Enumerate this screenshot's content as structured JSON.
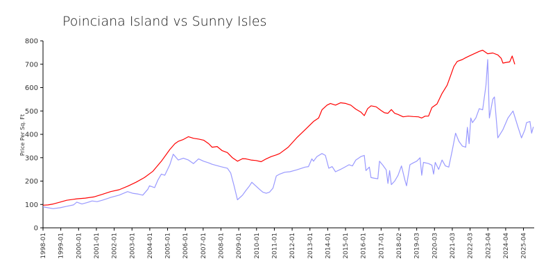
{
  "chart_data": {
    "type": "line",
    "title": "Poinciana Island vs Sunny Isles",
    "xlabel": "",
    "ylabel": "Price Per Sq. Ft",
    "ylim": [
      0,
      800
    ],
    "y_ticks": [
      0,
      100,
      200,
      300,
      400,
      500,
      600,
      700,
      800
    ],
    "x_ticks": [
      "1998-01",
      "1999-01",
      "2000-01",
      "2001-01",
      "2002-01",
      "2003-01",
      "2004-01",
      "2005-01",
      "2006-01",
      "2007-01",
      "2008-01",
      "2009-01",
      "2010-01",
      "2011-01",
      "2012-01",
      "2013-01",
      "2014-01",
      "2015-01",
      "2016-01",
      "2017-01",
      "2018-02",
      "2019-03",
      "2020-03",
      "2021-03",
      "2022-03",
      "2023-04",
      "2024-04",
      "2025-04"
    ],
    "grid": false,
    "legend": "none",
    "series": [
      {
        "color": "#ff0000",
        "points": [
          [
            1998.0,
            97
          ],
          [
            1998.3,
            98
          ],
          [
            1998.6,
            102
          ],
          [
            1999.0,
            110
          ],
          [
            1999.4,
            118
          ],
          [
            1999.8,
            122
          ],
          [
            2000.0,
            124
          ],
          [
            2000.5,
            127
          ],
          [
            2001.0,
            132
          ],
          [
            2001.5,
            143
          ],
          [
            2002.0,
            155
          ],
          [
            2002.5,
            163
          ],
          [
            2003.0,
            178
          ],
          [
            2003.5,
            195
          ],
          [
            2004.0,
            215
          ],
          [
            2004.5,
            242
          ],
          [
            2005.0,
            285
          ],
          [
            2005.5,
            335
          ],
          [
            2005.8,
            360
          ],
          [
            2006.0,
            370
          ],
          [
            2006.3,
            378
          ],
          [
            2006.6,
            390
          ],
          [
            2006.9,
            383
          ],
          [
            2007.2,
            380
          ],
          [
            2007.5,
            375
          ],
          [
            2007.8,
            360
          ],
          [
            2008.0,
            345
          ],
          [
            2008.3,
            348
          ],
          [
            2008.6,
            330
          ],
          [
            2008.9,
            322
          ],
          [
            2009.2,
            300
          ],
          [
            2009.5,
            285
          ],
          [
            2009.8,
            296
          ],
          [
            2010.0,
            295
          ],
          [
            2010.3,
            290
          ],
          [
            2010.6,
            288
          ],
          [
            2010.9,
            283
          ],
          [
            2011.2,
            295
          ],
          [
            2011.5,
            305
          ],
          [
            2011.8,
            312
          ],
          [
            2012.0,
            318
          ],
          [
            2012.5,
            345
          ],
          [
            2013.0,
            385
          ],
          [
            2013.5,
            420
          ],
          [
            2014.0,
            455
          ],
          [
            2014.3,
            470
          ],
          [
            2014.5,
            505
          ],
          [
            2014.8,
            525
          ],
          [
            2015.0,
            532
          ],
          [
            2015.3,
            525
          ],
          [
            2015.6,
            535
          ],
          [
            2015.9,
            532
          ],
          [
            2016.2,
            525
          ],
          [
            2016.5,
            508
          ],
          [
            2016.8,
            495
          ],
          [
            2017.0,
            480
          ],
          [
            2017.2,
            510
          ],
          [
            2017.4,
            522
          ],
          [
            2017.7,
            518
          ],
          [
            2018.0,
            502
          ],
          [
            2018.2,
            492
          ],
          [
            2018.4,
            490
          ],
          [
            2018.6,
            506
          ],
          [
            2018.8,
            490
          ],
          [
            2019.0,
            485
          ],
          [
            2019.3,
            475
          ],
          [
            2019.6,
            478
          ],
          [
            2019.9,
            476
          ],
          [
            2020.2,
            475
          ],
          [
            2020.4,
            470
          ],
          [
            2020.6,
            478
          ],
          [
            2020.8,
            478
          ],
          [
            2021.0,
            515
          ],
          [
            2021.3,
            530
          ],
          [
            2021.6,
            575
          ],
          [
            2021.9,
            610
          ],
          [
            2022.1,
            650
          ],
          [
            2022.3,
            690
          ],
          [
            2022.5,
            712
          ],
          [
            2022.8,
            720
          ],
          [
            2023.0,
            728
          ],
          [
            2023.2,
            735
          ],
          [
            2023.5,
            745
          ],
          [
            2023.8,
            755
          ],
          [
            2024.0,
            760
          ],
          [
            2024.3,
            745
          ],
          [
            2024.6,
            748
          ],
          [
            2024.9,
            740
          ],
          [
            2025.1,
            725
          ],
          [
            2025.2,
            705
          ],
          [
            2025.4,
            708
          ],
          [
            2025.6,
            710
          ],
          [
            2025.75,
            735
          ],
          [
            2025.9,
            700
          ]
        ]
      },
      {
        "color": "#9999ff",
        "points": [
          [
            1998.0,
            90
          ],
          [
            1998.3,
            86
          ],
          [
            1998.6,
            82
          ],
          [
            1999.0,
            86
          ],
          [
            1999.4,
            92
          ],
          [
            1999.8,
            98
          ],
          [
            2000.0,
            110
          ],
          [
            2000.3,
            102
          ],
          [
            2000.6,
            108
          ],
          [
            2000.9,
            115
          ],
          [
            2001.2,
            112
          ],
          [
            2001.5,
            118
          ],
          [
            2001.8,
            125
          ],
          [
            2002.0,
            130
          ],
          [
            2002.5,
            140
          ],
          [
            2003.0,
            155
          ],
          [
            2003.3,
            148
          ],
          [
            2003.6,
            145
          ],
          [
            2003.9,
            140
          ],
          [
            2004.2,
            165
          ],
          [
            2004.3,
            180
          ],
          [
            2004.6,
            172
          ],
          [
            2004.8,
            205
          ],
          [
            2005.0,
            230
          ],
          [
            2005.2,
            225
          ],
          [
            2005.5,
            270
          ],
          [
            2005.7,
            315
          ],
          [
            2006.0,
            290
          ],
          [
            2006.3,
            298
          ],
          [
            2006.6,
            290
          ],
          [
            2006.9,
            275
          ],
          [
            2007.2,
            295
          ],
          [
            2007.5,
            285
          ],
          [
            2007.8,
            278
          ],
          [
            2008.0,
            272
          ],
          [
            2008.5,
            262
          ],
          [
            2008.9,
            255
          ],
          [
            2009.1,
            235
          ],
          [
            2009.3,
            180
          ],
          [
            2009.5,
            120
          ],
          [
            2009.8,
            140
          ],
          [
            2010.0,
            160
          ],
          [
            2010.2,
            178
          ],
          [
            2010.35,
            195
          ],
          [
            2010.5,
            185
          ],
          [
            2010.8,
            165
          ],
          [
            2011.0,
            153
          ],
          [
            2011.2,
            148
          ],
          [
            2011.4,
            153
          ],
          [
            2011.6,
            170
          ],
          [
            2011.8,
            222
          ],
          [
            2012.0,
            230
          ],
          [
            2012.3,
            238
          ],
          [
            2012.6,
            240
          ],
          [
            2013.0,
            248
          ],
          [
            2013.3,
            255
          ],
          [
            2013.5,
            260
          ],
          [
            2013.7,
            262
          ],
          [
            2013.9,
            295
          ],
          [
            2014.0,
            285
          ],
          [
            2014.2,
            305
          ],
          [
            2014.5,
            318
          ],
          [
            2014.7,
            310
          ],
          [
            2014.9,
            255
          ],
          [
            2015.1,
            262
          ],
          [
            2015.3,
            240
          ],
          [
            2015.6,
            250
          ],
          [
            2015.9,
            262
          ],
          [
            2016.1,
            270
          ],
          [
            2016.3,
            265
          ],
          [
            2016.5,
            290
          ],
          [
            2016.8,
            305
          ],
          [
            2017.0,
            310
          ],
          [
            2017.1,
            245
          ],
          [
            2017.3,
            260
          ],
          [
            2017.4,
            215
          ],
          [
            2017.6,
            212
          ],
          [
            2017.8,
            210
          ],
          [
            2017.9,
            285
          ],
          [
            2018.1,
            268
          ],
          [
            2018.3,
            248
          ],
          [
            2018.4,
            190
          ],
          [
            2018.5,
            245
          ],
          [
            2018.6,
            185
          ],
          [
            2018.8,
            200
          ],
          [
            2019.0,
            225
          ],
          [
            2019.2,
            265
          ],
          [
            2019.4,
            205
          ],
          [
            2019.5,
            180
          ],
          [
            2019.7,
            270
          ],
          [
            2019.9,
            278
          ],
          [
            2020.1,
            285
          ],
          [
            2020.3,
            300
          ],
          [
            2020.4,
            225
          ],
          [
            2020.5,
            280
          ],
          [
            2020.8,
            275
          ],
          [
            2021.0,
            268
          ],
          [
            2021.1,
            230
          ],
          [
            2021.2,
            280
          ],
          [
            2021.4,
            250
          ],
          [
            2021.6,
            290
          ],
          [
            2021.8,
            265
          ],
          [
            2022.0,
            260
          ],
          [
            2022.2,
            330
          ],
          [
            2022.4,
            405
          ],
          [
            2022.6,
            370
          ],
          [
            2022.8,
            350
          ],
          [
            2023.0,
            345
          ],
          [
            2023.1,
            430
          ],
          [
            2023.2,
            360
          ],
          [
            2023.3,
            470
          ],
          [
            2023.4,
            450
          ],
          [
            2023.6,
            470
          ],
          [
            2023.8,
            510
          ],
          [
            2024.0,
            505
          ],
          [
            2024.2,
            610
          ],
          [
            2024.3,
            720
          ],
          [
            2024.4,
            470
          ],
          [
            2024.6,
            550
          ],
          [
            2024.7,
            560
          ],
          [
            2024.9,
            385
          ],
          [
            2025.2,
            420
          ],
          [
            2025.5,
            470
          ],
          [
            2025.8,
            500
          ],
          [
            2026.1,
            430
          ],
          [
            2026.3,
            385
          ],
          [
            2026.5,
            420
          ],
          [
            2026.6,
            450
          ],
          [
            2026.8,
            455
          ],
          [
            2026.9,
            405
          ],
          [
            2027.0,
            432
          ]
        ]
      }
    ]
  }
}
